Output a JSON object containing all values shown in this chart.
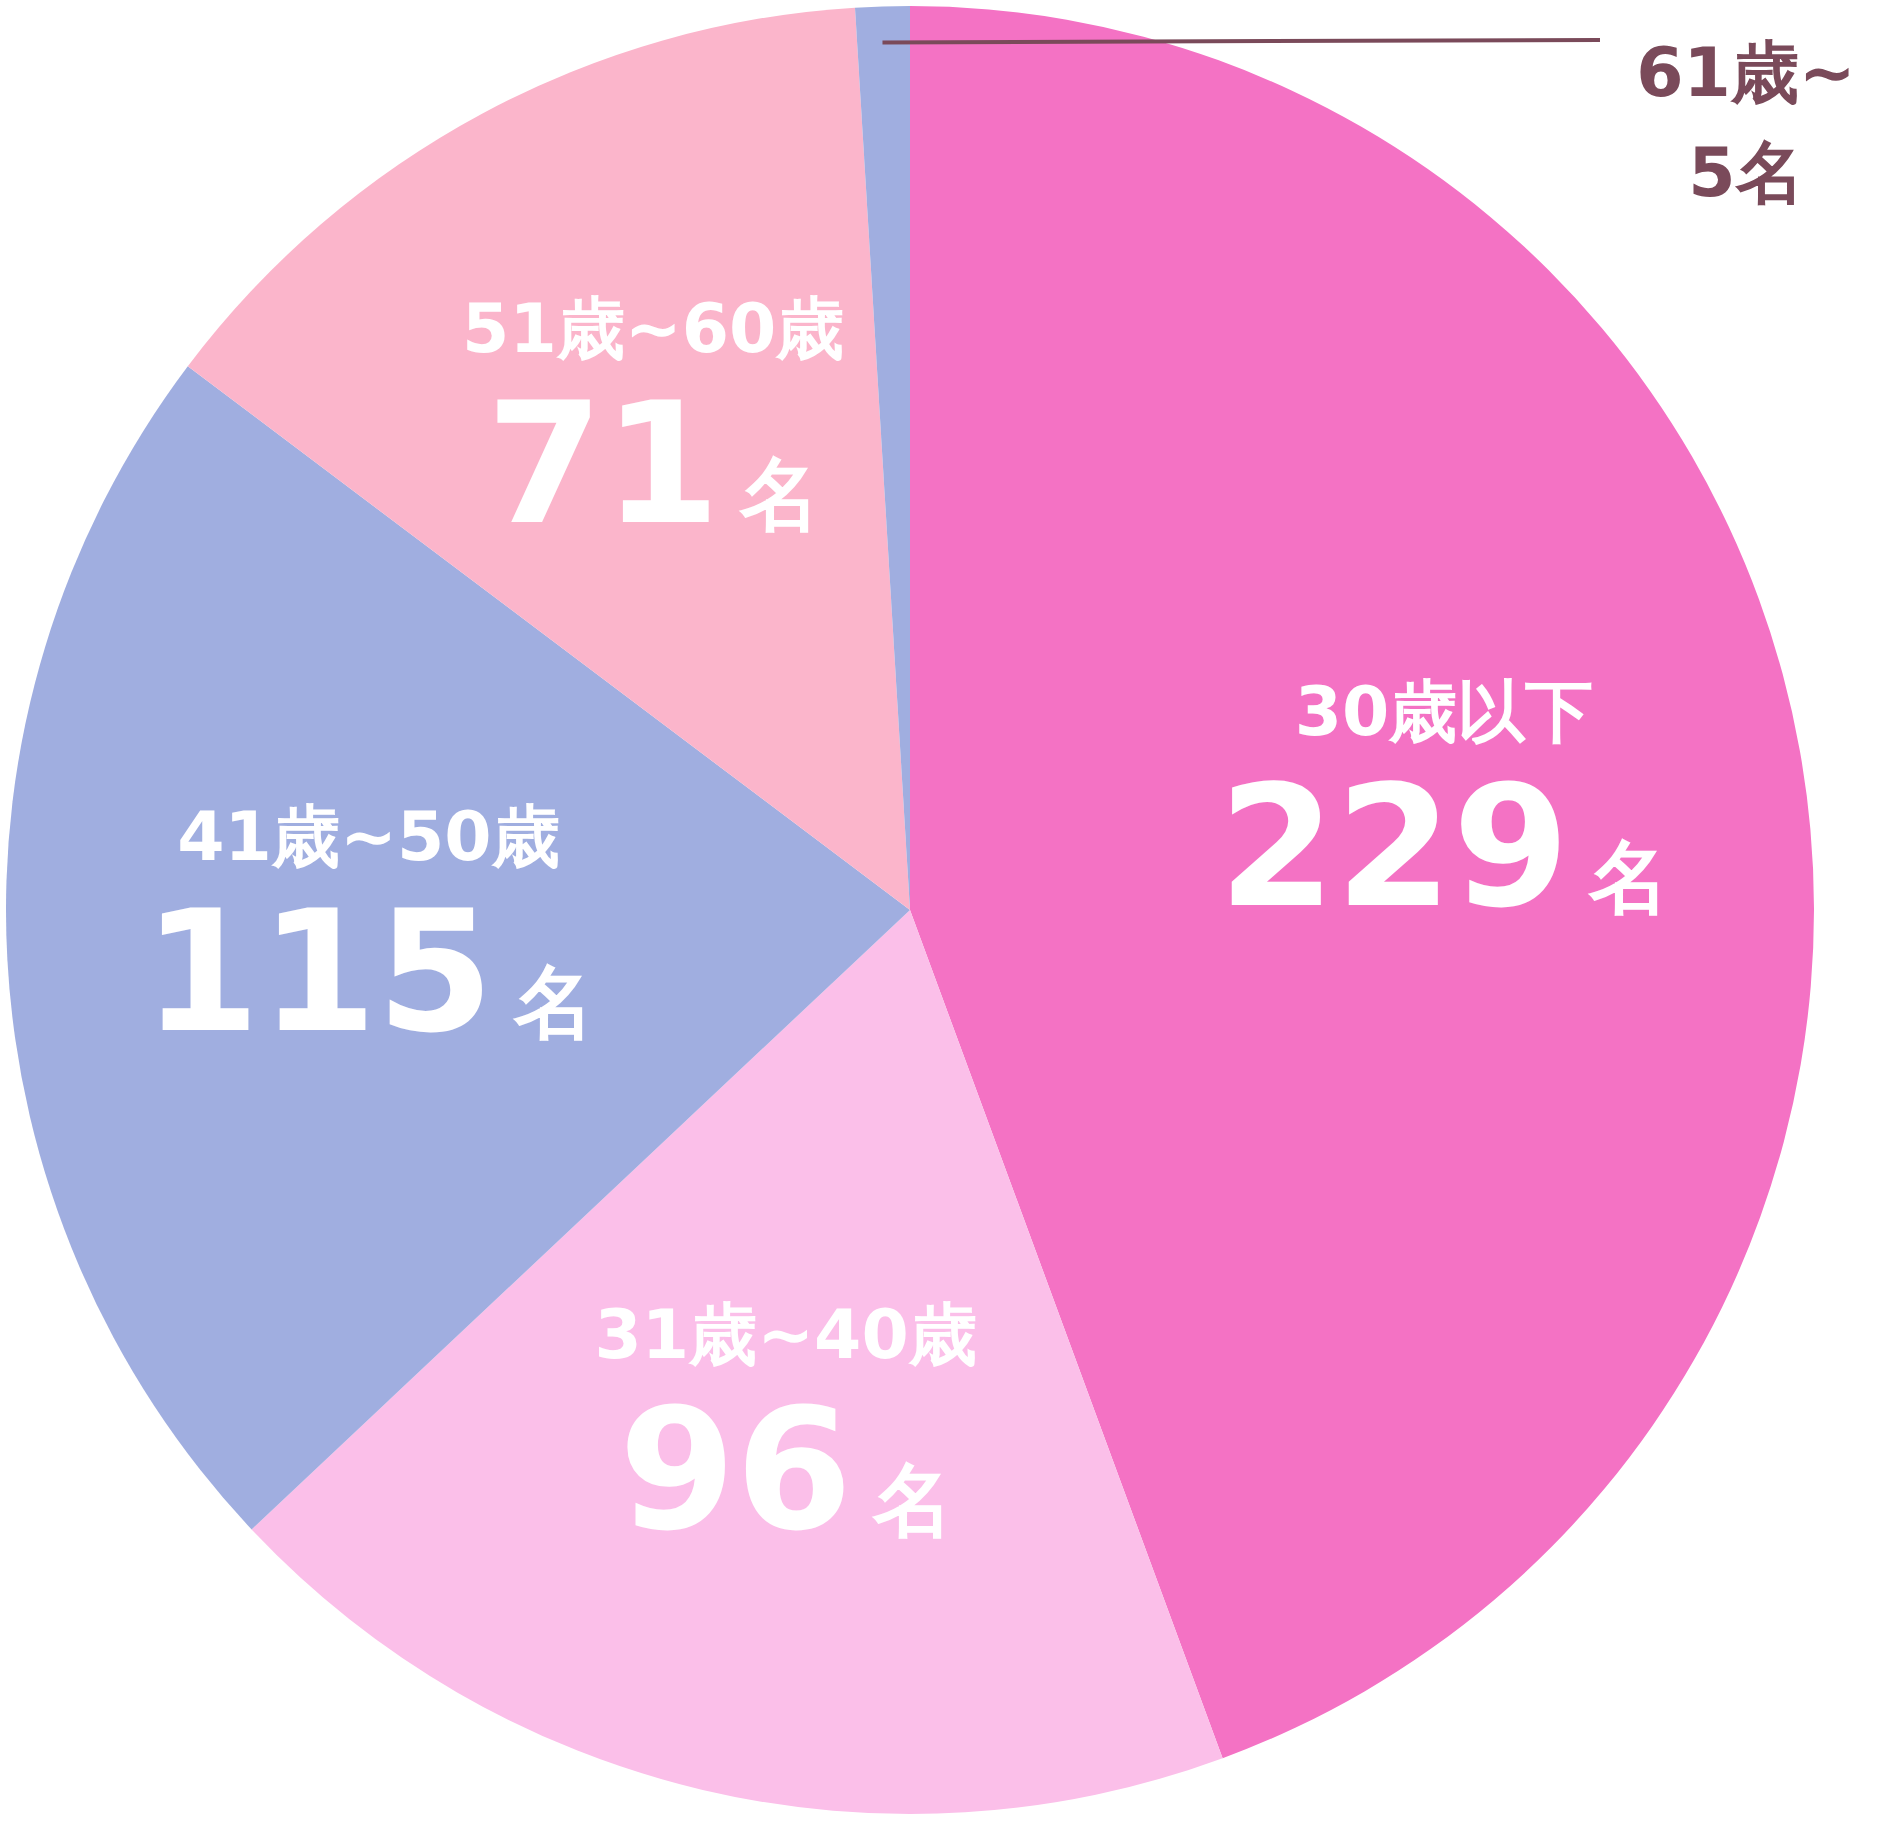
{
  "chart_data": {
    "type": "pie",
    "categories": [
      "30歳以下",
      "31歳~40歳",
      "41歳~50歳",
      "51歳~60歳",
      "61歳~"
    ],
    "values": [
      229,
      96,
      115,
      71,
      5
    ],
    "value_labels": [
      "229名",
      "96名",
      "115名",
      "71名",
      "5名"
    ],
    "colors": [
      "#f472c4",
      "#fbbfe9",
      "#a0aee0",
      "#fbb5cb",
      "#a0aee0"
    ]
  }
}
